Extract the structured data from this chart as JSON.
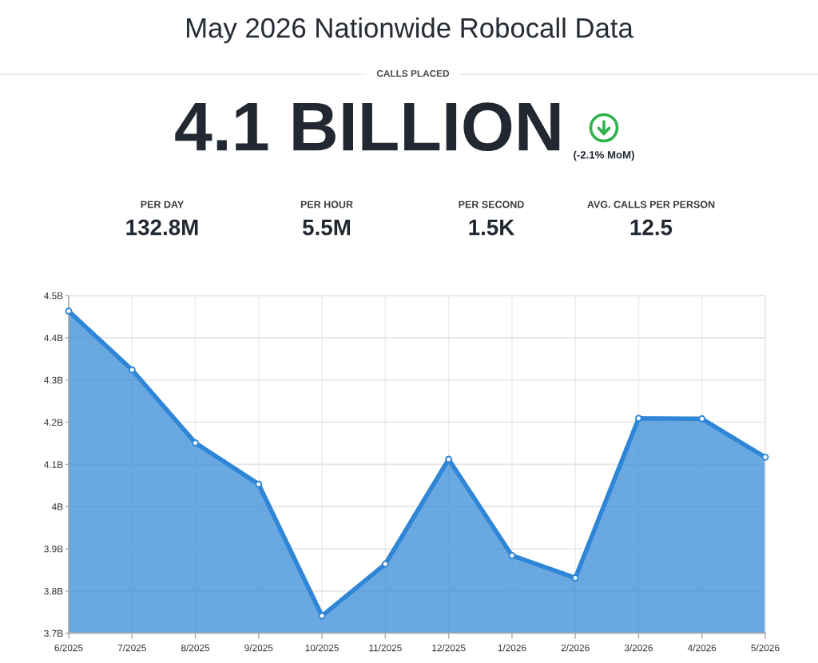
{
  "chart_data": {
    "type": "area",
    "title": "May 2026 Nationwide Robocall Data",
    "subtitle": "CALLS PLACED",
    "annotations": [
      "4.1 BILLION",
      "(-2.1% MoM)",
      "PER DAY",
      "132.8M",
      "PER HOUR",
      "5.5M",
      "PER SECOND",
      "1.5K",
      "AVG. CALLS PER PERSON",
      "12.5"
    ],
    "categories": [
      "6/2025",
      "7/2025",
      "8/2025",
      "9/2025",
      "10/2025",
      "11/2025",
      "12/2025",
      "1/2026",
      "2/2026",
      "3/2026",
      "4/2026",
      "5/2026"
    ],
    "values": [
      4.463,
      4.324,
      4.151,
      4.053,
      3.741,
      3.864,
      4.112,
      3.884,
      3.831,
      4.209,
      4.208,
      4.117
    ],
    "color": "#2f86d6",
    "ylim": [
      3.7,
      4.5
    ],
    "yticks": [
      {
        "value": 3.7,
        "label": "3.7B"
      },
      {
        "value": 3.8,
        "label": "3.8B"
      },
      {
        "value": 3.9,
        "label": "3.9B"
      },
      {
        "value": 4.0,
        "label": "4B"
      },
      {
        "value": 4.1,
        "label": "4.1B"
      },
      {
        "value": 4.2,
        "label": "4.2B"
      },
      {
        "value": 4.3,
        "label": "4.3B"
      },
      {
        "value": 4.4,
        "label": "4.4B"
      },
      {
        "value": 4.5,
        "label": "4.5B"
      }
    ],
    "grid": true,
    "marker": "circle",
    "line_style": "solid"
  }
}
